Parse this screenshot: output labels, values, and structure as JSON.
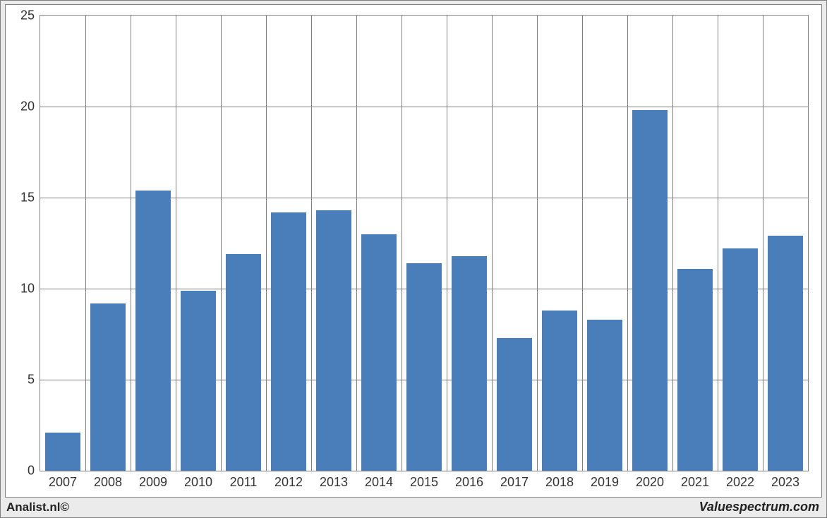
{
  "chart": {
    "type": "bar",
    "categories": [
      "2007",
      "2008",
      "2009",
      "2010",
      "2011",
      "2012",
      "2013",
      "2014",
      "2015",
      "2016",
      "2017",
      "2018",
      "2019",
      "2020",
      "2021",
      "2022",
      "2023"
    ],
    "values": [
      2.1,
      9.2,
      15.4,
      9.9,
      11.9,
      14.2,
      14.3,
      13.0,
      11.4,
      11.8,
      7.3,
      8.8,
      8.3,
      19.8,
      11.1,
      12.2,
      12.9
    ],
    "bar_color": "#4a7ebb",
    "ylim": [
      0,
      25
    ],
    "ytick_step": 5,
    "yticks": [
      0,
      5,
      10,
      15,
      20,
      25
    ],
    "grid_color": "#808080",
    "plot_border_color": "#808080",
    "panel_bg": "#ffffff",
    "outer_bg": "#ebebeb",
    "text_color": "#333333",
    "axis_fontsize": 18,
    "bar_width_ratio": 0.78
  },
  "footer": {
    "left": "Analist.nl©",
    "right": "Valuespectrum.com"
  }
}
